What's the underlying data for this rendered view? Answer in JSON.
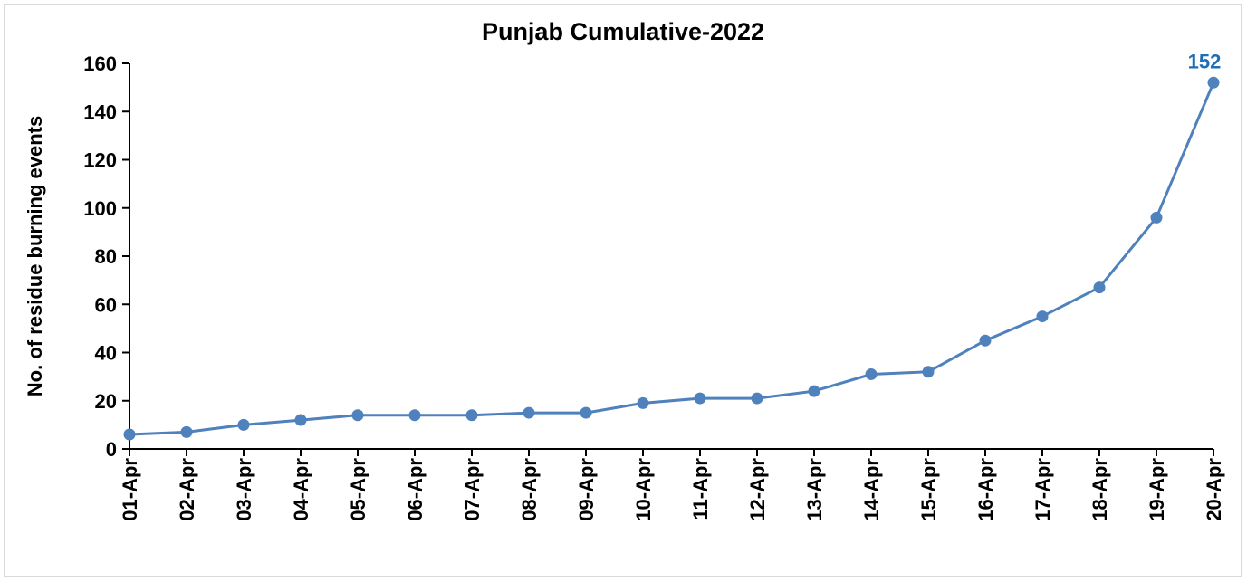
{
  "chart_data": {
    "type": "line",
    "title": "Punjab Cumulative-2022",
    "xlabel": "",
    "ylabel": "No. of residue burning events",
    "categories": [
      "01-Apr",
      "02-Apr",
      "03-Apr",
      "04-Apr",
      "05-Apr",
      "06-Apr",
      "07-Apr",
      "08-Apr",
      "09-Apr",
      "10-Apr",
      "11-Apr",
      "12-Apr",
      "13-Apr",
      "14-Apr",
      "15-Apr",
      "16-Apr",
      "17-Apr",
      "18-Apr",
      "19-Apr",
      "20-Apr"
    ],
    "series": [
      {
        "values": [
          6,
          7,
          10,
          12,
          14,
          14,
          14,
          15,
          15,
          19,
          21,
          21,
          24,
          31,
          32,
          45,
          55,
          67,
          96,
          152
        ]
      }
    ],
    "ylim": [
      0,
      160
    ],
    "yticks": [
      0,
      20,
      40,
      60,
      80,
      100,
      120,
      140,
      160
    ],
    "grid": false,
    "legend": "none",
    "data_labels": [
      {
        "index": 19,
        "text": "152"
      }
    ],
    "colors": {
      "line": "#4f81bd",
      "data_label": "#1f6fb5",
      "text": "#000000",
      "border": "#d9d9d9"
    }
  }
}
